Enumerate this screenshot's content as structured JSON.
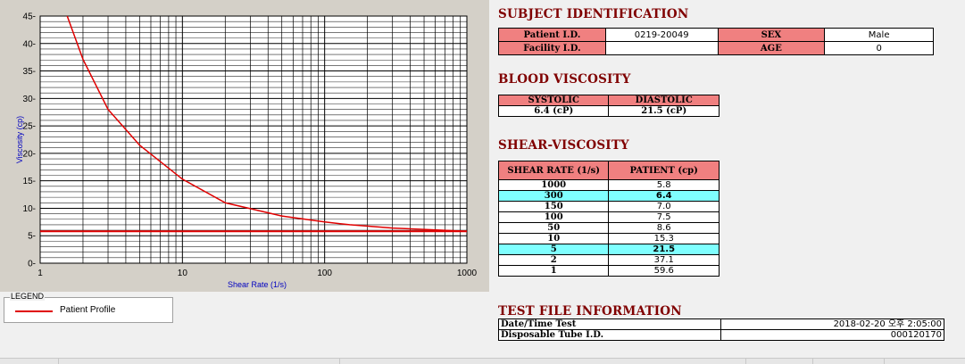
{
  "legend": {
    "title": "LEGEND",
    "label": "Patient Profile"
  },
  "subject": {
    "title": "SUBJECT IDENTIFICATION",
    "patient_label": "Patient I.D.",
    "patient_value": "0219-20049",
    "sex_label": "SEX",
    "sex_value": "Male",
    "facility_label": "Facility I.D.",
    "facility_value": "",
    "age_label": "AGE",
    "age_value": "0"
  },
  "blood": {
    "title": "BLOOD VISCOSITY",
    "systolic_label": "SYSTOLIC",
    "diastolic_label": "DIASTOLIC",
    "systolic_value": "6.4 (cP)",
    "diastolic_value": "21.5 (cP)"
  },
  "shear": {
    "title": "SHEAR-VISCOSITY",
    "col1": "SHEAR RATE (1/s)",
    "col2": "PATIENT (cp)",
    "rows": [
      {
        "rate": "1000",
        "val": "5.8"
      },
      {
        "rate": "300",
        "val": "6.4"
      },
      {
        "rate": "150",
        "val": "7.0"
      },
      {
        "rate": "100",
        "val": "7.5"
      },
      {
        "rate": "50",
        "val": "8.6"
      },
      {
        "rate": "10",
        "val": "15.3"
      },
      {
        "rate": "5",
        "val": "21.5"
      },
      {
        "rate": "2",
        "val": "37.1"
      },
      {
        "rate": "1",
        "val": "59.6"
      }
    ]
  },
  "testfile": {
    "title": "TEST FILE INFORMATION",
    "datetime_label": "Date/Time Test",
    "datetime_value": "2018-02-20  오후 2:05:00",
    "tube_label": "Disposable Tube I.D.",
    "tube_value": "000120170"
  },
  "colors": {
    "curve": "#e00000",
    "highlight": "#7fffff",
    "header": "#f08080",
    "title": "#800000"
  },
  "chart_data": {
    "type": "line",
    "xlabel": "Shear Rate (1/s)",
    "ylabel": "Viscosity (cp)",
    "xscale": "log",
    "xlim": [
      1,
      1000
    ],
    "ylim": [
      0,
      45
    ],
    "xticks": [
      "1",
      "10",
      "100",
      "1000"
    ],
    "yticks": [
      "0",
      "5",
      "10",
      "15",
      "20",
      "25",
      "30",
      "35",
      "40",
      "45"
    ],
    "grid": true,
    "series": [
      {
        "name": "Patient Profile",
        "x": [
          1.55,
          2,
          3,
          5,
          10,
          20,
          50,
          100,
          150,
          300,
          1000
        ],
        "y": [
          45,
          37.1,
          28,
          21.5,
          15.3,
          11,
          8.6,
          7.5,
          7.0,
          6.4,
          5.8
        ]
      }
    ],
    "reference_line_y": 5.8
  }
}
